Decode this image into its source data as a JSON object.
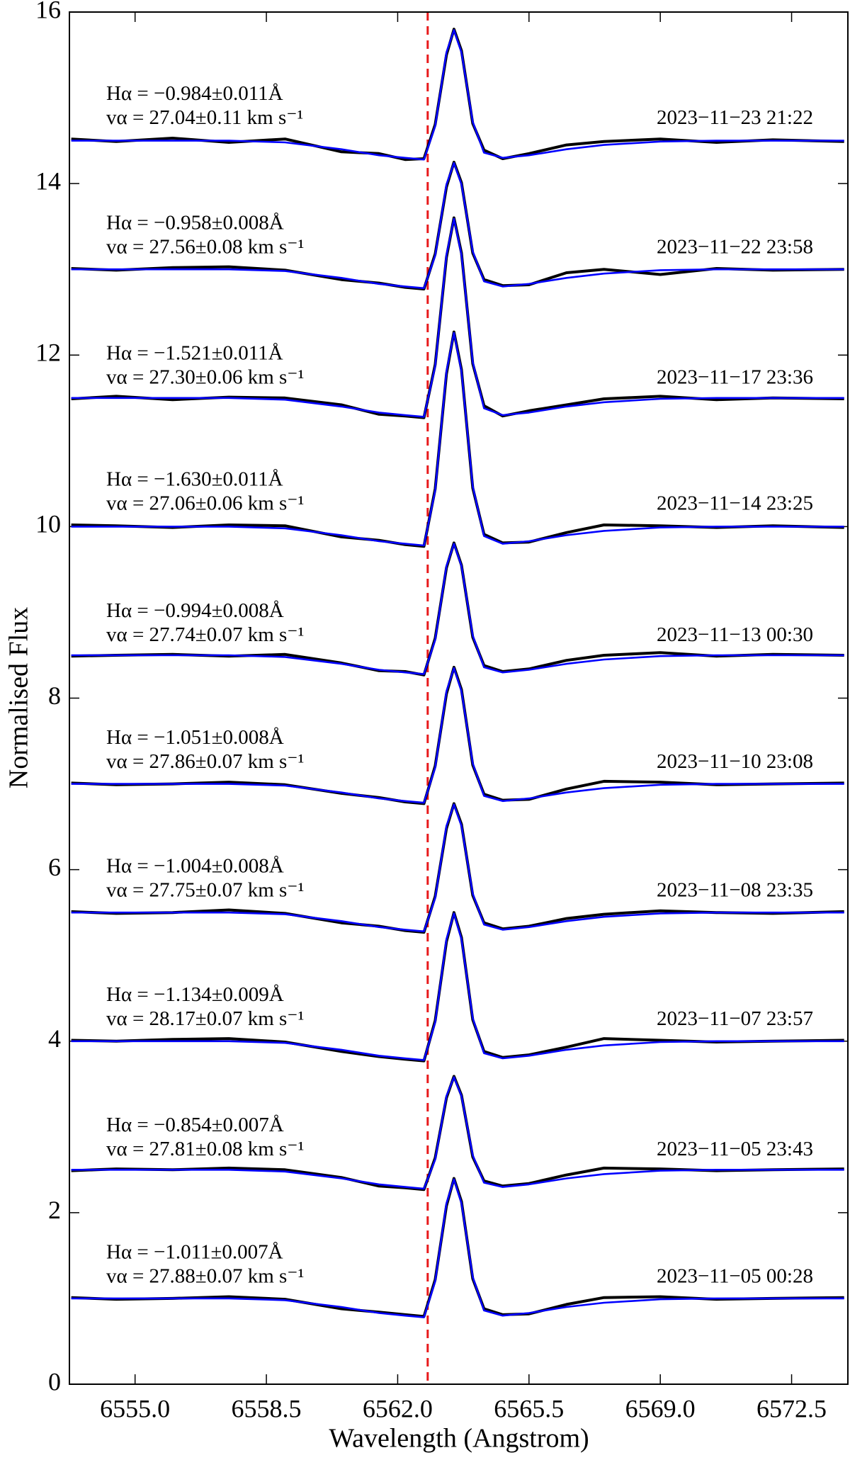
{
  "chart_data": {
    "type": "line",
    "x_label": "Wavelength (Angstrom)",
    "y_label": "Normalised Flux",
    "x": [
      6553.3,
      6554.5,
      6556,
      6557.5,
      6559,
      6560.5,
      6561.5,
      6562.2,
      6562.7,
      6563.0,
      6563.3,
      6563.5,
      6563.7,
      6564.0,
      6564.3,
      6564.8,
      6565.5,
      6566.5,
      6567.5,
      6569,
      6570.5,
      6572,
      6573.9
    ],
    "xlim": [
      6553.25,
      6574.0
    ],
    "xticks": [
      {
        "value": 6555,
        "label": "6555.0"
      },
      {
        "value": 6558.5,
        "label": "6558.5"
      },
      {
        "value": 6562,
        "label": "6562.0"
      },
      {
        "value": 6565.5,
        "label": "6565.5"
      },
      {
        "value": 6569,
        "label": "6569.0"
      },
      {
        "value": 6572.5,
        "label": "6572.5"
      }
    ],
    "ylim": [
      0,
      16
    ],
    "yticks": [
      0,
      2,
      4,
      6,
      8,
      10,
      12,
      14,
      16
    ],
    "reference_line": {
      "x": 6562.8,
      "color": "#e8191b"
    },
    "series": [
      {
        "color": "#000000",
        "values": [
          14.52,
          14.49,
          14.53,
          14.48,
          14.52,
          14.37,
          14.35,
          14.28,
          14.29,
          14.69,
          15.5,
          15.8,
          15.55,
          14.7,
          14.39,
          14.29,
          14.35,
          14.45,
          14.49,
          14.52,
          14.48,
          14.51,
          14.49
        ]
      },
      {
        "color": "#0000ff",
        "values": [
          14.5,
          14.5,
          14.5,
          14.5,
          14.48,
          14.4,
          14.33,
          14.3,
          14.28,
          14.67,
          15.53,
          15.79,
          15.53,
          14.72,
          14.36,
          14.3,
          14.33,
          14.4,
          14.45,
          14.49,
          14.5,
          14.5,
          14.5
        ]
      },
      {
        "color": "#000000",
        "values": [
          13.01,
          12.99,
          13.02,
          13.03,
          12.99,
          12.88,
          12.84,
          12.79,
          12.77,
          13.18,
          13.96,
          14.25,
          14.01,
          13.19,
          12.88,
          12.81,
          12.82,
          12.96,
          13.0,
          12.94,
          13.01,
          12.99,
          13.0
        ]
      },
      {
        "color": "#0000ff",
        "values": [
          13,
          13,
          13,
          13,
          12.98,
          12.9,
          12.83,
          12.8,
          12.78,
          13.16,
          13.99,
          14.24,
          13.99,
          13.21,
          12.86,
          12.8,
          12.83,
          12.9,
          12.95,
          12.99,
          13,
          13,
          13
        ]
      },
      {
        "color": "#000000",
        "values": [
          11.49,
          11.52,
          11.48,
          11.51,
          11.5,
          11.42,
          11.31,
          11.29,
          11.27,
          11.89,
          13.14,
          13.6,
          13.19,
          11.9,
          11.41,
          11.29,
          11.35,
          11.42,
          11.49,
          11.52,
          11.48,
          11.5,
          11.49
        ]
      },
      {
        "color": "#0000ff",
        "values": [
          11.5,
          11.5,
          11.5,
          11.5,
          11.48,
          11.4,
          11.33,
          11.3,
          11.28,
          11.87,
          13.17,
          13.59,
          13.17,
          11.92,
          11.38,
          11.3,
          11.33,
          11.4,
          11.45,
          11.49,
          11.5,
          11.5,
          11.5
        ]
      },
      {
        "color": "#000000",
        "values": [
          10.02,
          10.01,
          9.99,
          10.02,
          10.01,
          9.88,
          9.84,
          9.79,
          9.77,
          10.44,
          11.78,
          12.27,
          11.83,
          10.45,
          9.91,
          9.81,
          9.82,
          9.93,
          10.02,
          10.01,
          9.99,
          10.01,
          9.99
        ]
      },
      {
        "color": "#0000ff",
        "values": [
          10,
          10,
          10,
          10,
          9.98,
          9.9,
          9.83,
          9.8,
          9.78,
          10.42,
          11.81,
          12.26,
          11.81,
          10.47,
          9.89,
          9.8,
          9.83,
          9.9,
          9.95,
          9.99,
          10,
          10,
          10
        ]
      },
      {
        "color": "#000000",
        "values": [
          8.49,
          8.5,
          8.51,
          8.49,
          8.51,
          8.41,
          8.32,
          8.31,
          8.27,
          8.7,
          9.52,
          9.81,
          9.55,
          8.71,
          8.38,
          8.31,
          8.34,
          8.44,
          8.5,
          8.53,
          8.49,
          8.51,
          8.5
        ]
      },
      {
        "color": "#0000ff",
        "values": [
          8.5,
          8.5,
          8.5,
          8.5,
          8.48,
          8.4,
          8.33,
          8.3,
          8.28,
          8.68,
          9.54,
          9.8,
          9.54,
          8.73,
          8.36,
          8.3,
          8.33,
          8.4,
          8.45,
          8.49,
          8.5,
          8.5,
          8.5
        ]
      },
      {
        "color": "#000000",
        "values": [
          7.01,
          6.99,
          7.0,
          7.02,
          6.99,
          6.89,
          6.84,
          6.79,
          6.77,
          7.21,
          8.05,
          8.36,
          8.1,
          7.22,
          6.88,
          6.81,
          6.82,
          6.94,
          7.03,
          7.02,
          6.99,
          7.0,
          7.01
        ]
      },
      {
        "color": "#0000ff",
        "values": [
          7,
          7,
          7,
          7,
          6.98,
          6.9,
          6.83,
          6.8,
          6.78,
          7.19,
          8.08,
          8.35,
          8.08,
          7.24,
          6.86,
          6.8,
          6.83,
          6.9,
          6.95,
          6.99,
          7,
          7,
          7
        ]
      },
      {
        "color": "#000000",
        "values": [
          5.51,
          5.49,
          5.5,
          5.53,
          5.49,
          5.38,
          5.34,
          5.29,
          5.27,
          5.69,
          6.48,
          6.77,
          6.53,
          5.7,
          5.38,
          5.31,
          5.34,
          5.43,
          5.48,
          5.52,
          5.5,
          5.49,
          5.51
        ]
      },
      {
        "color": "#0000ff",
        "values": [
          5.5,
          5.5,
          5.5,
          5.5,
          5.48,
          5.4,
          5.33,
          5.3,
          5.28,
          5.67,
          6.51,
          6.76,
          6.51,
          5.72,
          5.36,
          5.3,
          5.33,
          5.4,
          5.45,
          5.49,
          5.5,
          5.5,
          5.5
        ]
      },
      {
        "color": "#000000",
        "values": [
          4.01,
          4.0,
          4.02,
          4.03,
          3.99,
          3.88,
          3.82,
          3.79,
          3.77,
          4.24,
          5.16,
          5.5,
          5.21,
          4.25,
          3.88,
          3.81,
          3.84,
          3.93,
          4.03,
          4.01,
          3.99,
          4.0,
          4.01
        ]
      },
      {
        "color": "#0000ff",
        "values": [
          4,
          4,
          4,
          4,
          3.98,
          3.9,
          3.83,
          3.8,
          3.78,
          4.22,
          5.19,
          5.49,
          5.19,
          4.27,
          3.86,
          3.8,
          3.83,
          3.9,
          3.95,
          3.99,
          4,
          4,
          4
        ]
      },
      {
        "color": "#000000",
        "values": [
          2.49,
          2.51,
          2.5,
          2.52,
          2.5,
          2.41,
          2.31,
          2.29,
          2.27,
          2.64,
          3.34,
          3.59,
          3.37,
          2.65,
          2.37,
          2.31,
          2.34,
          2.44,
          2.52,
          2.51,
          2.49,
          2.5,
          2.51
        ]
      },
      {
        "color": "#0000ff",
        "values": [
          2.5,
          2.5,
          2.5,
          2.5,
          2.48,
          2.4,
          2.33,
          2.3,
          2.28,
          2.62,
          3.36,
          3.58,
          3.36,
          2.67,
          2.35,
          2.3,
          2.33,
          2.4,
          2.45,
          2.49,
          2.5,
          2.5,
          2.5
        ]
      },
      {
        "color": "#000000",
        "values": [
          1.01,
          0.99,
          1.0,
          1.02,
          0.99,
          0.88,
          0.84,
          0.81,
          0.79,
          1.22,
          2.08,
          2.4,
          2.13,
          1.23,
          0.88,
          0.81,
          0.82,
          0.93,
          1.01,
          1.02,
          0.99,
          1.0,
          1.01
        ]
      },
      {
        "color": "#0000ff",
        "values": [
          1,
          1,
          1,
          1,
          0.98,
          0.9,
          0.83,
          0.8,
          0.78,
          1.2,
          2.11,
          2.39,
          2.11,
          1.25,
          0.86,
          0.8,
          0.83,
          0.9,
          0.95,
          0.99,
          1,
          1,
          1
        ]
      }
    ],
    "labels": [
      {
        "h_alpha": "Hα = −0.984±0.011Å",
        "v_alpha": "vα = 27.04±0.11 km s⁻¹",
        "date": "2023−11−23 21:22"
      },
      {
        "h_alpha": "Hα = −0.958±0.008Å",
        "v_alpha": "vα = 27.56±0.08 km s⁻¹",
        "date": "2023−11−22 23:58"
      },
      {
        "h_alpha": "Hα = −1.521±0.011Å",
        "v_alpha": "vα = 27.30±0.06 km s⁻¹",
        "date": "2023−11−17 23:36"
      },
      {
        "h_alpha": "Hα = −1.630±0.011Å",
        "v_alpha": "vα = 27.06±0.06 km s⁻¹",
        "date": "2023−11−14 23:25"
      },
      {
        "h_alpha": "Hα = −0.994±0.008Å",
        "v_alpha": "vα = 27.74±0.07 km s⁻¹",
        "date": "2023−11−13 00:30"
      },
      {
        "h_alpha": "Hα = −1.051±0.008Å",
        "v_alpha": "vα = 27.86±0.07 km s⁻¹",
        "date": "2023−11−10 23:08"
      },
      {
        "h_alpha": "Hα = −1.004±0.008Å",
        "v_alpha": "vα = 27.75±0.07 km s⁻¹",
        "date": "2023−11−08 23:35"
      },
      {
        "h_alpha": "Hα = −1.134±0.009Å",
        "v_alpha": "vα = 28.17±0.07 km s⁻¹",
        "date": "2023−11−07 23:57"
      },
      {
        "h_alpha": "Hα = −0.854±0.007Å",
        "v_alpha": "vα = 27.81±0.08 km s⁻¹",
        "date": "2023−11−05 23:43"
      },
      {
        "h_alpha": "Hα = −1.011±0.007Å",
        "v_alpha": "vα = 27.88±0.07 km s⁻¹",
        "date": "2023−11−05 00:28"
      }
    ]
  }
}
